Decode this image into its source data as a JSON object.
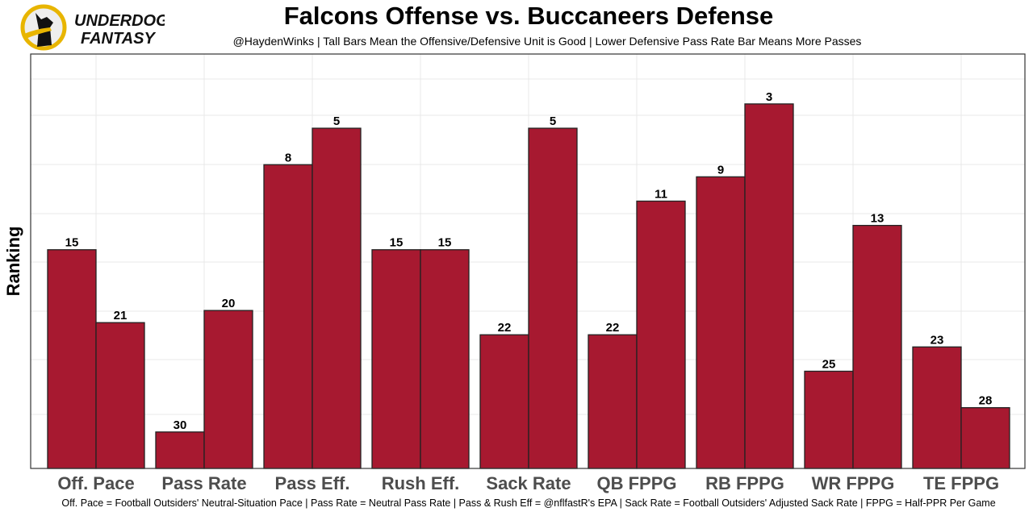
{
  "logo_text": "UNDERDOG FANTASY",
  "colors": {
    "bar": "#A71930",
    "bar_stroke": "#222222",
    "logo_ring": "#E8B500"
  },
  "chart_data": {
    "type": "bar",
    "title": "Falcons Offense vs. Buccaneers Defense",
    "subtitle": "@HaydenWinks | Tall Bars Mean the Offensive/Defensive Unit is Good | Lower Defensive Pass Rate Bar Means More Passes",
    "ylabel": "Ranking",
    "xlabel": "",
    "caption": "Off. Pace = Football Outsiders' Neutral-Situation Pace | Pass Rate = Neutral Pass Rate | Pass & Rush Eff = @nflfastR's EPA | Sack Rate = Football Outsiders' Adjusted Sack Rate | FPPG = Half-PPR Per Game",
    "categories": [
      "Off. Pace",
      "Pass Rate",
      "Pass Eff.",
      "Rush Eff.",
      "Sack Rate",
      "QB FPPG",
      "RB FPPG",
      "WR FPPG",
      "TE FPPG"
    ],
    "series": [
      {
        "values": [
          15,
          30,
          8,
          15,
          22,
          22,
          9,
          25,
          23
        ]
      },
      {
        "values": [
          21,
          20,
          5,
          15,
          5,
          11,
          3,
          13,
          28
        ]
      }
    ],
    "y_axis": "rank, inverted (rank 1 tallest)",
    "grid": true
  }
}
